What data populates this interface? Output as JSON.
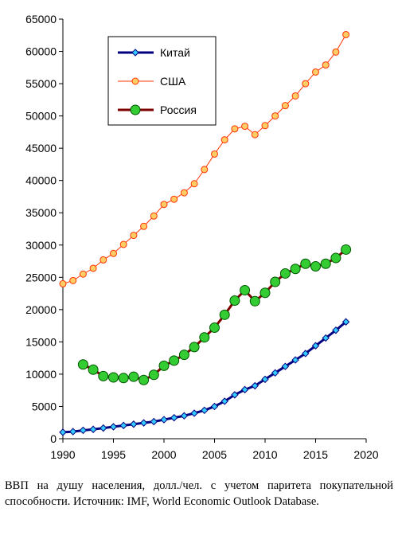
{
  "chart_data": {
    "type": "line",
    "title": "",
    "xlabel": "",
    "ylabel": "",
    "xlim": [
      1990,
      2020
    ],
    "ylim": [
      0,
      65000
    ],
    "xticks": [
      1990,
      1995,
      2000,
      2005,
      2010,
      2015,
      2020
    ],
    "yticks": [
      0,
      5000,
      10000,
      15000,
      20000,
      25000,
      30000,
      35000,
      40000,
      45000,
      50000,
      55000,
      60000,
      65000
    ],
    "grid": false,
    "legend_position": "top-left",
    "series": [
      {
        "name": "Китай",
        "color": "#000080",
        "marker": "diamond",
        "marker_color": "#33ccff",
        "x": [
          1990,
          1991,
          1992,
          1993,
          1994,
          1995,
          1996,
          1997,
          1998,
          1999,
          2000,
          2001,
          2002,
          2003,
          2004,
          2005,
          2006,
          2007,
          2008,
          2009,
          2010,
          2011,
          2012,
          2013,
          2014,
          2015,
          2016,
          2017,
          2018
        ],
        "values": [
          1000,
          1100,
          1300,
          1450,
          1650,
          1850,
          2050,
          2250,
          2450,
          2650,
          2950,
          3250,
          3550,
          3950,
          4400,
          5000,
          5800,
          6800,
          7600,
          8200,
          9200,
          10200,
          11200,
          12200,
          13200,
          14400,
          15600,
          16800,
          18100
        ]
      },
      {
        "name": "США",
        "color": "#ff3300",
        "marker": "circle",
        "marker_color": "#ffcc66",
        "x": [
          1990,
          1991,
          1992,
          1993,
          1994,
          1995,
          1996,
          1997,
          1998,
          1999,
          2000,
          2001,
          2002,
          2003,
          2004,
          2005,
          2006,
          2007,
          2008,
          2009,
          2010,
          2011,
          2012,
          2013,
          2014,
          2015,
          2016,
          2017,
          2018
        ],
        "values": [
          24000,
          24500,
          25500,
          26400,
          27700,
          28700,
          30100,
          31500,
          32900,
          34500,
          36300,
          37100,
          38100,
          39500,
          41700,
          44100,
          46300,
          48000,
          48400,
          47100,
          48500,
          50000,
          51600,
          53100,
          55000,
          56800,
          57900,
          59900,
          62600
        ]
      },
      {
        "name": "Россия",
        "color": "#800000",
        "marker": "circle",
        "marker_color": "#33cc33",
        "x": [
          1992,
          1993,
          1994,
          1995,
          1996,
          1997,
          1998,
          1999,
          2000,
          2001,
          2002,
          2003,
          2004,
          2005,
          2006,
          2007,
          2008,
          2009,
          2010,
          2011,
          2012,
          2013,
          2014,
          2015,
          2016,
          2017,
          2018
        ],
        "values": [
          11500,
          10700,
          9700,
          9500,
          9400,
          9600,
          9100,
          9900,
          11300,
          12100,
          13000,
          14200,
          15700,
          17200,
          19200,
          21400,
          23000,
          21300,
          22600,
          24300,
          25600,
          26300,
          27100,
          26700,
          27100,
          28000,
          29300
        ]
      }
    ]
  },
  "caption": "ВВП на душу населения, долл./чел. с учетом паритета покупательной способности. Источник:  IMF, World Economic Outlook Database."
}
